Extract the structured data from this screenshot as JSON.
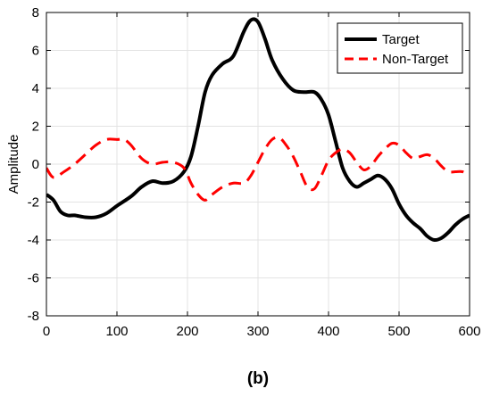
{
  "panel_label": "(b)",
  "colors": {
    "target": "#000000",
    "non_target": "#ff0000",
    "grid": "#e3e3e3",
    "axes": "#000000"
  },
  "chart_data": {
    "type": "line",
    "title": "",
    "xlabel": "",
    "ylabel": "Amplitude",
    "xlim": [
      0,
      600
    ],
    "ylim": [
      -8,
      8
    ],
    "xticks": [
      0,
      100,
      200,
      300,
      400,
      500,
      600
    ],
    "yticks": [
      -8,
      -6,
      -4,
      -2,
      0,
      2,
      4,
      6,
      8
    ],
    "grid": true,
    "legend_position": "top-right",
    "series": [
      {
        "name": "Target",
        "style": "solid",
        "color": "#000000",
        "x": [
          0,
          10,
          20,
          30,
          40,
          55,
          70,
          85,
          100,
          120,
          135,
          150,
          165,
          180,
          195,
          205,
          215,
          225,
          235,
          250,
          265,
          280,
          290,
          300,
          310,
          320,
          335,
          350,
          365,
          380,
          390,
          400,
          410,
          420,
          430,
          440,
          450,
          460,
          470,
          480,
          490,
          500,
          510,
          520,
          530,
          540,
          550,
          560,
          570,
          580,
          590,
          600
        ],
        "y": [
          -1.6,
          -1.9,
          -2.5,
          -2.7,
          -2.7,
          -2.8,
          -2.8,
          -2.6,
          -2.2,
          -1.7,
          -1.2,
          -0.9,
          -1.0,
          -0.9,
          -0.4,
          0.4,
          2.0,
          3.8,
          4.7,
          5.3,
          5.7,
          7.0,
          7.6,
          7.5,
          6.6,
          5.5,
          4.5,
          3.9,
          3.8,
          3.8,
          3.4,
          2.6,
          1.2,
          -0.2,
          -0.9,
          -1.2,
          -1.0,
          -0.8,
          -0.6,
          -0.8,
          -1.3,
          -2.1,
          -2.7,
          -3.1,
          -3.4,
          -3.8,
          -4.0,
          -3.9,
          -3.6,
          -3.2,
          -2.9,
          -2.7
        ]
      },
      {
        "name": "Non-Target",
        "style": "dashed",
        "color": "#ff0000",
        "x": [
          0,
          10,
          25,
          40,
          55,
          70,
          85,
          100,
          110,
          120,
          135,
          150,
          165,
          180,
          195,
          205,
          215,
          225,
          235,
          250,
          265,
          280,
          290,
          300,
          310,
          320,
          330,
          340,
          350,
          360,
          370,
          380,
          390,
          400,
          410,
          420,
          430,
          440,
          450,
          460,
          470,
          480,
          490,
          500,
          510,
          520,
          530,
          540,
          550,
          560,
          570,
          580,
          590,
          600
        ],
        "y": [
          -0.2,
          -0.7,
          -0.4,
          0.0,
          0.5,
          1.0,
          1.3,
          1.3,
          1.3,
          1.0,
          0.3,
          0.0,
          0.1,
          0.1,
          -0.2,
          -1.0,
          -1.6,
          -1.9,
          -1.6,
          -1.2,
          -1.0,
          -1.0,
          -0.6,
          0.1,
          0.8,
          1.3,
          1.4,
          1.0,
          0.4,
          -0.4,
          -1.2,
          -1.3,
          -0.6,
          0.2,
          0.6,
          0.8,
          0.6,
          0.1,
          -0.3,
          -0.1,
          0.4,
          0.8,
          1.1,
          1.0,
          0.6,
          0.3,
          0.4,
          0.5,
          0.3,
          -0.1,
          -0.4,
          -0.4,
          -0.4,
          -0.6
        ]
      }
    ]
  }
}
